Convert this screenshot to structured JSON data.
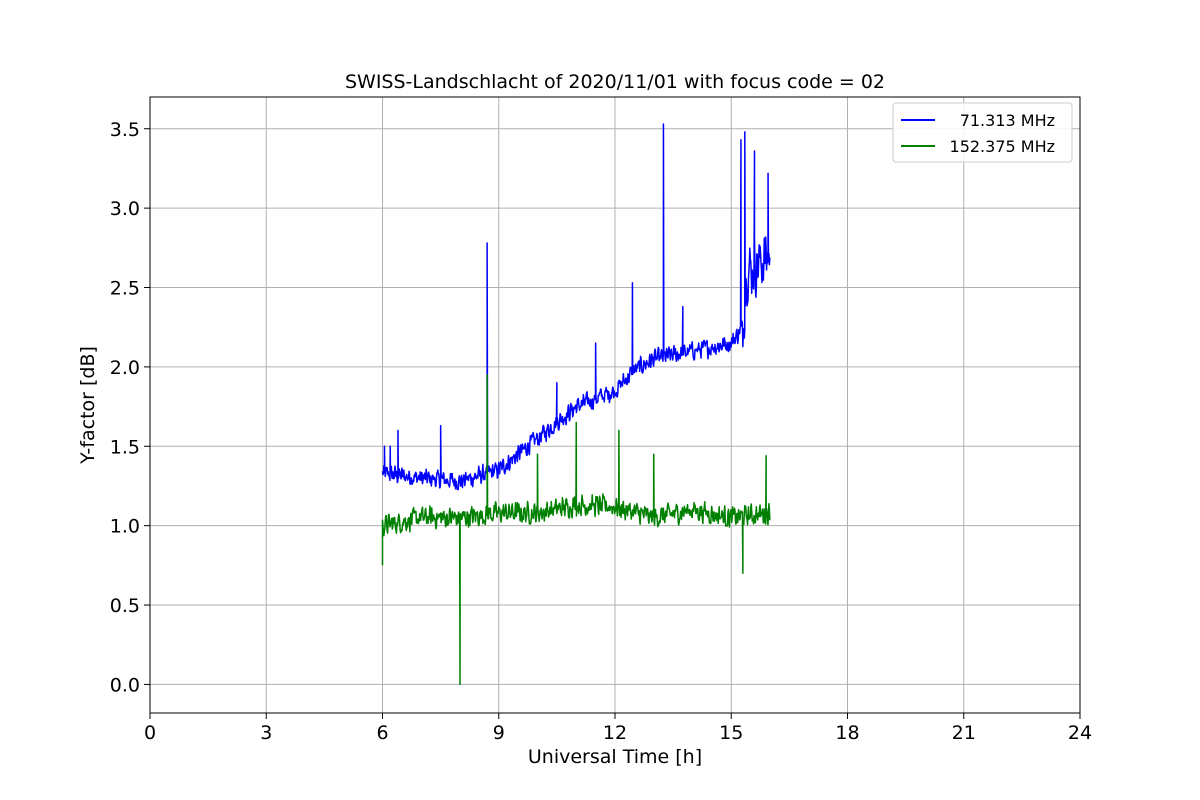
{
  "chart_data": {
    "type": "line",
    "title": "SWISS-Landschlacht of 2020/11/01 with focus code = 02",
    "xlabel": "Universal Time [h]",
    "ylabel": "Y-factor [dB]",
    "xlim": [
      0,
      24
    ],
    "ylim": [
      -0.18,
      3.7
    ],
    "xticks": [
      0,
      3,
      6,
      9,
      12,
      15,
      18,
      21,
      24
    ],
    "xtick_labels": [
      "0",
      "3",
      "6",
      "9",
      "12",
      "15",
      "18",
      "21",
      "24"
    ],
    "yticks": [
      0.0,
      0.5,
      1.0,
      1.5,
      2.0,
      2.5,
      3.0,
      3.5
    ],
    "ytick_labels": [
      "0.0",
      "0.5",
      "1.0",
      "1.5",
      "2.0",
      "2.5",
      "3.0",
      "3.5"
    ],
    "grid": true,
    "legend_position": "top-right",
    "series": [
      {
        "name": "71.313 MHz",
        "color": "#0000ff",
        "noise_amplitude": 0.07,
        "baseline": [
          [
            6.0,
            1.33
          ],
          [
            7.0,
            1.3
          ],
          [
            8.0,
            1.28
          ],
          [
            9.0,
            1.35
          ],
          [
            10.0,
            1.55
          ],
          [
            11.0,
            1.75
          ],
          [
            12.0,
            1.85
          ],
          [
            12.5,
            1.98
          ],
          [
            13.0,
            2.05
          ],
          [
            14.0,
            2.1
          ],
          [
            15.0,
            2.15
          ],
          [
            15.3,
            2.25
          ],
          [
            15.4,
            2.6
          ],
          [
            16.0,
            2.7
          ]
        ],
        "spikes": [
          [
            6.05,
            1.5
          ],
          [
            6.2,
            1.5
          ],
          [
            6.4,
            1.6
          ],
          [
            7.5,
            1.63
          ],
          [
            8.7,
            2.78
          ],
          [
            10.5,
            1.9
          ],
          [
            11.5,
            2.15
          ],
          [
            12.45,
            2.53
          ],
          [
            13.25,
            3.53
          ],
          [
            13.75,
            2.38
          ],
          [
            15.25,
            3.43
          ],
          [
            15.35,
            3.48
          ],
          [
            15.6,
            3.36
          ],
          [
            15.95,
            3.22
          ]
        ]
      },
      {
        "name": "152.375 MHz",
        "color": "#008000",
        "noise_amplitude": 0.08,
        "baseline": [
          [
            6.0,
            1.0
          ],
          [
            7.0,
            1.05
          ],
          [
            8.0,
            1.05
          ],
          [
            9.0,
            1.08
          ],
          [
            10.0,
            1.08
          ],
          [
            11.0,
            1.13
          ],
          [
            12.0,
            1.12
          ],
          [
            13.0,
            1.05
          ],
          [
            14.0,
            1.1
          ],
          [
            15.0,
            1.05
          ],
          [
            16.0,
            1.08
          ]
        ],
        "spikes": [
          [
            6.0,
            0.75
          ],
          [
            8.0,
            0.0
          ],
          [
            8.7,
            1.95
          ],
          [
            10.0,
            1.45
          ],
          [
            11.0,
            1.65
          ],
          [
            12.1,
            1.6
          ],
          [
            13.0,
            1.45
          ],
          [
            15.3,
            0.7
          ],
          [
            15.9,
            1.44
          ]
        ]
      }
    ]
  }
}
